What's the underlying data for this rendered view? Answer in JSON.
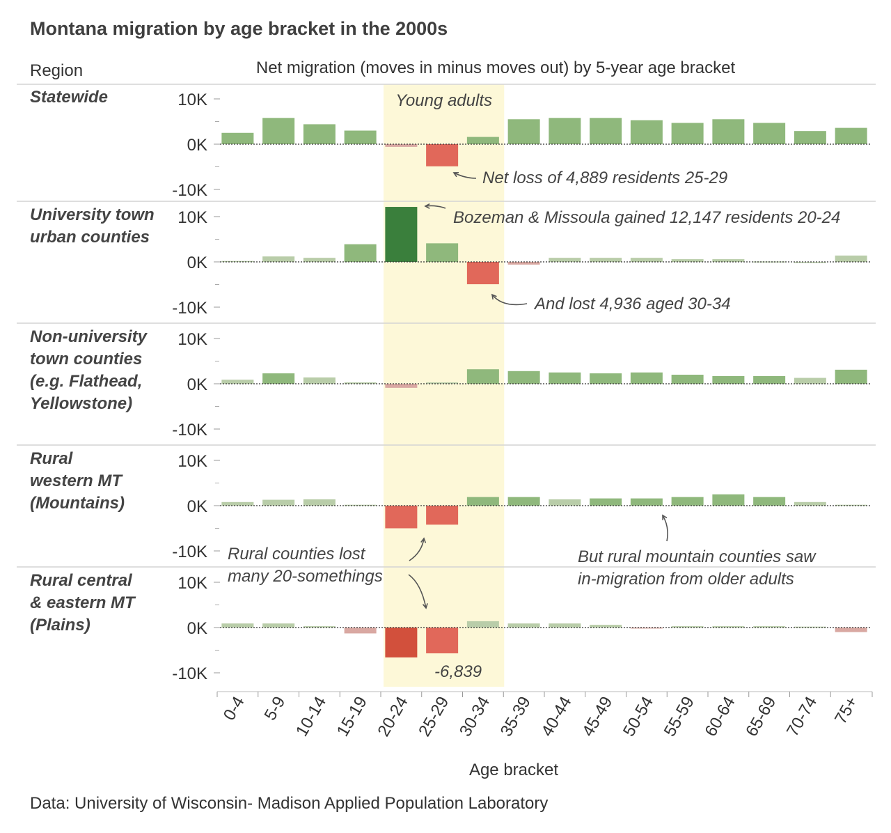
{
  "title": "Montana migration by age bracket in the 2000s",
  "region_header": "Region",
  "subtitle": "Net migration (moves in minus moves out) by 5-year age bracket",
  "source": "Data: University of Wisconsin- Madison Applied Population Laboratory",
  "highlight_label": "Young adults",
  "colors": {
    "highlight": "#fdf8d8",
    "gain_light": "#b9cda9",
    "gain_mid": "#8fb87c",
    "gain_dark": "#3a7f3c",
    "loss_light": "#d9a8a2",
    "loss_mid": "#e1685a",
    "loss_dark": "#d2503c"
  },
  "chart_data": {
    "type": "bar",
    "xlabel": "Age bracket",
    "categories": [
      "0-4",
      "5-9",
      "10-14",
      "15-19",
      "20-24",
      "25-29",
      "30-34",
      "35-39",
      "40-44",
      "45-49",
      "50-54",
      "55-59",
      "60-64",
      "65-69",
      "70-74",
      "75+"
    ],
    "highlight_categories": [
      "20-24",
      "25-29",
      "30-34"
    ],
    "ylim": [
      -12000,
      12000
    ],
    "yticks": [
      -10000,
      0,
      10000
    ],
    "ytick_labels": [
      "-10K",
      "0K",
      "10K"
    ],
    "grid": false,
    "panels": [
      {
        "name_lines": [
          "Statewide"
        ],
        "values": [
          2500,
          5800,
          4400,
          3000,
          -600,
          -4889,
          1600,
          5500,
          5800,
          5800,
          5300,
          4700,
          5500,
          4700,
          2900,
          3600
        ]
      },
      {
        "name_lines": [
          "University town",
          "urban counties"
        ],
        "values": [
          200,
          1200,
          900,
          3900,
          12147,
          4100,
          -4936,
          -600,
          900,
          900,
          900,
          600,
          600,
          100,
          0,
          1400
        ]
      },
      {
        "name_lines": [
          "Non-university",
          "town counties",
          "(e.g. Flathead,",
          "Yellowstone)"
        ],
        "values": [
          900,
          2300,
          1400,
          300,
          -900,
          300,
          3200,
          2800,
          2500,
          2300,
          2500,
          2000,
          1700,
          1700,
          1300,
          3100
        ]
      },
      {
        "name_lines": [
          "Rural",
          "western MT",
          "(Mountains)"
        ],
        "values": [
          800,
          1300,
          1400,
          200,
          -5000,
          -4200,
          1900,
          1900,
          1400,
          1600,
          1600,
          1900,
          2500,
          1900,
          800,
          200
        ]
      },
      {
        "name_lines": [
          "Rural central",
          "& eastern MT",
          "(Plains)"
        ],
        "values": [
          900,
          900,
          300,
          -1300,
          -6600,
          -5700,
          1400,
          900,
          900,
          600,
          -200,
          300,
          300,
          300,
          200,
          -1000
        ]
      }
    ],
    "annotations": [
      {
        "text": "Net loss of 4,889 residents 25-29"
      },
      {
        "text": "Bozeman & Missoula gained 12,147 residents 20-24"
      },
      {
        "text": "And lost 4,936 aged 30-34"
      },
      {
        "text_lines": [
          "Rural counties lost",
          "many 20-somethings"
        ]
      },
      {
        "text_lines": [
          "But rural mountain counties saw",
          "in-migration from older adults"
        ]
      },
      {
        "text": "-6,839"
      }
    ]
  }
}
